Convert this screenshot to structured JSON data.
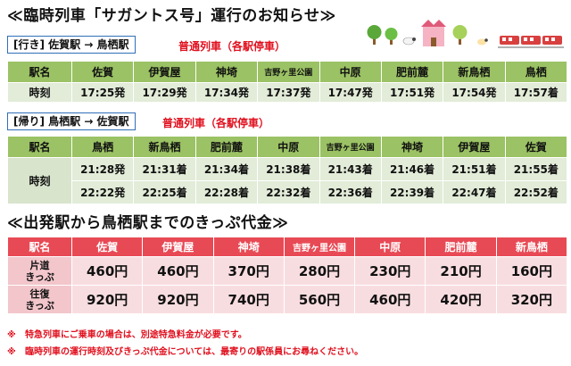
{
  "title": "≪臨時列車「サガントス号」運行のお知らせ≫",
  "outbound": {
    "route": "[行き] 佐賀駅 → 鳥栖駅",
    "train_type": "普通列車（各駅停車）",
    "header": [
      "駅名",
      "佐賀",
      "伊賀屋",
      "神埼",
      "吉野ヶ里公園",
      "中原",
      "肥前麓",
      "新鳥栖",
      "鳥栖"
    ],
    "row_label": "時刻",
    "times": [
      "17:25発",
      "17:29発",
      "17:34発",
      "17:37発",
      "17:47発",
      "17:51発",
      "17:54発",
      "17:57着"
    ]
  },
  "return": {
    "route": "[帰り] 鳥栖駅 → 佐賀駅",
    "train_type": "普通列車（各駅停車）",
    "header": [
      "駅名",
      "鳥栖",
      "新鳥栖",
      "肥前麓",
      "中原",
      "吉野ヶ里公園",
      "神埼",
      "伊賀屋",
      "佐賀"
    ],
    "row_label": "時刻",
    "times": [
      [
        "21:28発",
        "21:31着",
        "21:34着",
        "21:38着",
        "21:43着",
        "21:46着",
        "21:51着",
        "21:55着"
      ],
      [
        "22:22発",
        "22:25着",
        "22:28着",
        "22:32着",
        "22:36着",
        "22:39着",
        "22:47着",
        "22:52着"
      ]
    ]
  },
  "fares": {
    "title": "≪出発駅から鳥栖駅までのきっぷ代金≫",
    "header": [
      "駅名",
      "佐賀",
      "伊賀屋",
      "神埼",
      "吉野ヶ里公園",
      "中原",
      "肥前麓",
      "新鳥栖"
    ],
    "rows": [
      {
        "label_line1": "片道",
        "label_line2": "きっぷ",
        "values": [
          "460円",
          "460円",
          "370円",
          "280円",
          "230円",
          "210円",
          "160円"
        ]
      },
      {
        "label_line1": "往復",
        "label_line2": "きっぷ",
        "values": [
          "920円",
          "920円",
          "740円",
          "560円",
          "460円",
          "420円",
          "320円"
        ]
      }
    ]
  },
  "notes": [
    {
      "mark": "※",
      "text": "特急列車にご乗車の場合は、別途特急料金が必要です。"
    },
    {
      "mark": "※",
      "text": "臨時列車の運行時刻及びきっぷ代金については、最寄りの駅係員にお尋ねください。"
    }
  ],
  "colors": {
    "timetable_header": "#9bc264",
    "timetable_cell": "#e2ecd8",
    "fare_header": "#e84a55",
    "fare_cell": "#f8dde0",
    "note_red": "#e0101e",
    "route_border": "#2f6fb8"
  },
  "icons": [
    "tree-icon",
    "sheep-icon",
    "castle-icon",
    "train-icon"
  ]
}
